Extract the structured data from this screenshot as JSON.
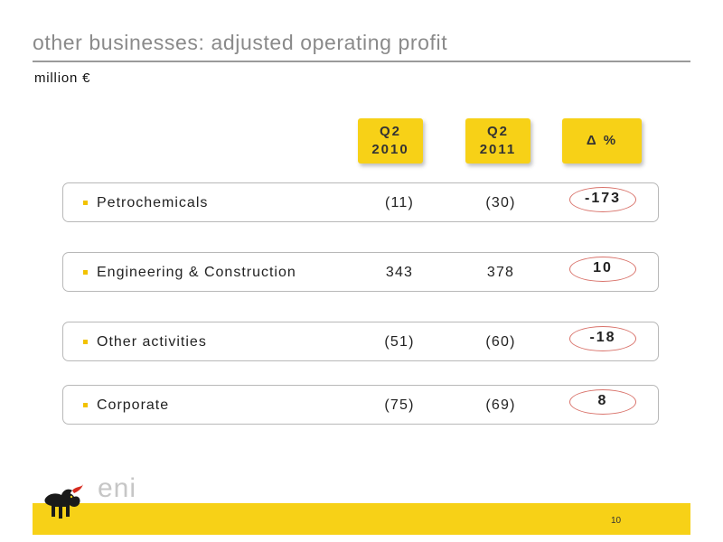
{
  "header": {
    "title": "other businesses: adjusted operating profit",
    "unit": "million €"
  },
  "columns": {
    "q2_2010": [
      "Q2",
      "2010"
    ],
    "q2_2011": [
      "Q2",
      "2011"
    ],
    "delta": "Δ %"
  },
  "rows": [
    {
      "label": "Petrochemicals",
      "q2_2010": "(11)",
      "q2_2011": "(30)",
      "delta": "-173"
    },
    {
      "label": "Engineering & Construction",
      "q2_2010": "343",
      "q2_2011": "378",
      "delta": "10"
    },
    {
      "label": "Other activities",
      "q2_2010": "(51)",
      "q2_2011": "(60)",
      "delta": "-18"
    },
    {
      "label": "Corporate",
      "q2_2010": "(75)",
      "q2_2011": "(69)",
      "delta": "8"
    }
  ],
  "footer": {
    "logo_text": "eni",
    "page_number": "10",
    "logo_icon": "six-legged-dog-icon"
  },
  "colors": {
    "accent_yellow": "#f7d117",
    "delta_outline": "#d9736b"
  }
}
